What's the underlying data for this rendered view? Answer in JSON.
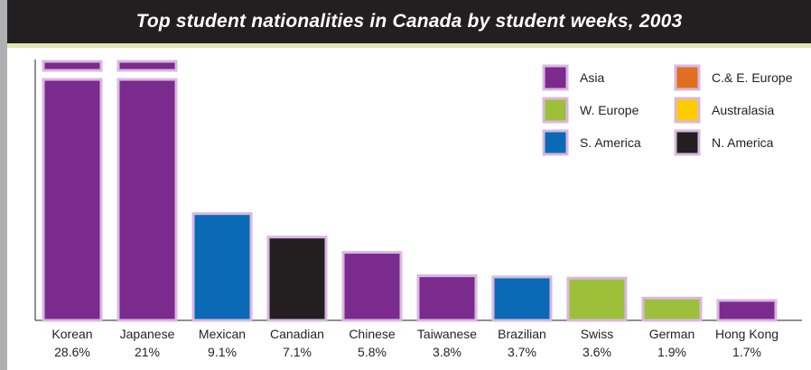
{
  "chart_data": {
    "type": "bar",
    "title": "Top student nationalities in Canada by student weeks, 2003",
    "categories": [
      "Korean",
      "Japanese",
      "Mexican",
      "Canadian",
      "Chinese",
      "Taiwanese",
      "Brazilian",
      "Swiss",
      "German",
      "Hong Kong"
    ],
    "value_labels": [
      "28.6%",
      "21%",
      "9.1%",
      "7.1%",
      "5.8%",
      "3.8%",
      "3.7%",
      "3.6%",
      "1.9%",
      "1.7%"
    ],
    "values": [
      28.6,
      21,
      9.1,
      7.1,
      5.8,
      3.8,
      3.7,
      3.6,
      1.9,
      1.7
    ],
    "regions": [
      "Asia",
      "Asia",
      "S. America",
      "N. America",
      "Asia",
      "Asia",
      "S. America",
      "W. Europe",
      "W. Europe",
      "Asia"
    ],
    "y_axis_broken": true,
    "legend_position": "top-right",
    "legend": [
      {
        "label": "Asia",
        "color": "#7b2a8e"
      },
      {
        "label": "C.& E. Europe",
        "color": "#e07020"
      },
      {
        "label": "W. Europe",
        "color": "#9dc03b"
      },
      {
        "label": "Australasia",
        "color": "#ffcc00"
      },
      {
        "label": "S. America",
        "color": "#0a6ab6"
      },
      {
        "label": "N. America",
        "color": "#231f20"
      }
    ],
    "region_colors": {
      "Asia": "#7b2a8e",
      "C.& E. Europe": "#e07020",
      "W. Europe": "#9dc03b",
      "Australasia": "#ffcc00",
      "S. America": "#0a6ab6",
      "N. America": "#231f20"
    },
    "outline_color": "#d8b8e0",
    "grid": false
  }
}
